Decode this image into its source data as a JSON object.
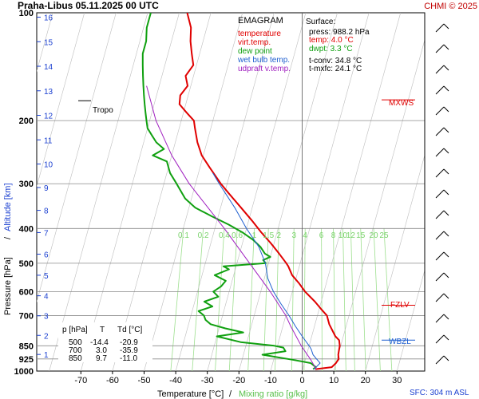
{
  "header": {
    "title": "Praha-Libus   05.11.2025 00 UTC",
    "copyright": "CHMI © 2025"
  },
  "legend": {
    "title": "EMAGRAM",
    "items": [
      {
        "label": "temperature",
        "color": "#e00000"
      },
      {
        "label": "virt.temp.",
        "color": "#e00000"
      },
      {
        "label": "dew point",
        "color": "#10a010"
      },
      {
        "label": "wet bulb temp.",
        "color": "#2060d0"
      },
      {
        "label": "udpraft v.temp.",
        "color": "#a020c0"
      }
    ]
  },
  "surface": {
    "title": "Surface:",
    "press": "press: 988.2 hPa",
    "temp": "temp: 4.0 °C",
    "dwpt": "dwpt: 3.3 °C",
    "tconv": "t-conv: 34.8 °C",
    "tmxfc": "t-mxfc: 24.1 °C"
  },
  "table": {
    "headers": [
      "p [hPa]",
      "T",
      "Td [°C]"
    ],
    "rows": [
      [
        "500",
        "-14.4",
        "-20.9"
      ],
      [
        "700",
        "3.0",
        "-35.9"
      ],
      [
        "850",
        "9.7",
        "-11.0"
      ]
    ]
  },
  "levels": {
    "tropo": "Tropo",
    "mxws": "MXWS",
    "fzlv": "FZLV",
    "wbzl": "WBZL",
    "sfc": "SFC: 304 m ASL"
  },
  "chart_data": {
    "type": "line",
    "title": "Praha-Libus   05.11.2025 00 UTC",
    "xlabel": "Temperature [°C]",
    "xlabel_secondary": "Mixing ratio [g/kg]",
    "ylabel": "Pressure [hPa]",
    "ylabel_secondary": "Altitude [km]",
    "y_scale": "log",
    "xlim": [
      -80,
      30
    ],
    "ylim": [
      1000,
      100
    ],
    "x_ticks": [
      -70,
      -60,
      -50,
      -40,
      -30,
      -20,
      -10,
      0,
      10,
      20,
      30
    ],
    "y_ticks": [
      100,
      200,
      300,
      400,
      500,
      600,
      700,
      850,
      925,
      1000
    ],
    "altitude_ticks": [
      1,
      2,
      3,
      4,
      5,
      6,
      7,
      8,
      9,
      10,
      11,
      12,
      13,
      14,
      15,
      16
    ],
    "mixing_ratio_ticks": [
      "0.1",
      "0.2",
      "0.4",
      "0.6",
      "1",
      "1.5",
      "2",
      "3",
      "4",
      "6",
      "8",
      "10",
      "12",
      "15",
      "20",
      "25"
    ],
    "series": [
      {
        "name": "temperature",
        "color": "#e00000",
        "p": [
          988,
          975,
          950,
          925,
          900,
          870,
          850,
          820,
          800,
          770,
          740,
          700,
          670,
          640,
          600,
          570,
          540,
          510,
          500,
          470,
          440,
          410,
          380,
          350,
          320,
          300,
          270,
          250,
          230,
          210,
          200,
          190,
          180,
          170,
          160,
          150,
          140,
          130,
          120,
          110,
          100
        ],
        "t": [
          4.0,
          9.0,
          10.0,
          10.5,
          10.0,
          9.8,
          9.7,
          9.0,
          7.5,
          6.0,
          4.5,
          3.0,
          0.5,
          -2.0,
          -6.0,
          -8.5,
          -11.5,
          -13.5,
          -14.4,
          -17.5,
          -21.0,
          -25.0,
          -29.0,
          -33.5,
          -38.5,
          -42.0,
          -47.0,
          -50.5,
          -53.0,
          -55.0,
          -56.0,
          -59.0,
          -62.0,
          -62.5,
          -61.0,
          -62.5,
          -61.0,
          -62.5,
          -64.0,
          -65.0,
          -67.5
        ]
      },
      {
        "name": "dew point",
        "color": "#10a010",
        "p": [
          988,
          975,
          950,
          930,
          900,
          880,
          860,
          850,
          830,
          800,
          780,
          760,
          740,
          720,
          700,
          680,
          660,
          640,
          620,
          600,
          580,
          560,
          540,
          520,
          510,
          500,
          490,
          480,
          470,
          450,
          430,
          410,
          390,
          370,
          350,
          330,
          300,
          280,
          260,
          250,
          240,
          230,
          220,
          210,
          200,
          190,
          180,
          170,
          160,
          150,
          140,
          130,
          120,
          110,
          100
        ],
        "t": [
          3.3,
          4.0,
          2.0,
          -4.0,
          -14.0,
          -7.0,
          -8.0,
          -11.0,
          -22.0,
          -30.0,
          -22.0,
          -28.0,
          -33.0,
          -35.0,
          -35.9,
          -38.0,
          -34.0,
          -37.0,
          -33.0,
          -35.0,
          -33.0,
          -32.0,
          -36.0,
          -32.0,
          -34.0,
          -20.9,
          -22.0,
          -20.0,
          -22.0,
          -24.0,
          -27.0,
          -31.0,
          -36.0,
          -42.0,
          -48.0,
          -52.0,
          -56.0,
          -59.0,
          -61.0,
          -66.0,
          -63.0,
          -66.0,
          -68.0,
          -70.0,
          -71.0,
          -72.0,
          -73.0,
          -74.0,
          -75.0,
          -76.0,
          -77.0,
          -78.0,
          -78.0,
          -79.0,
          -79.0
        ]
      },
      {
        "name": "wet bulb temp.",
        "color": "#2060d0",
        "p": [
          988,
          950,
          925,
          900,
          870,
          850,
          800,
          750,
          700,
          650,
          600,
          550,
          500,
          450,
          400,
          350,
          300,
          280
        ],
        "t": [
          3.6,
          5.0,
          3.5,
          2.0,
          1.0,
          0.0,
          -3.0,
          -6.0,
          -9.0,
          -12.5,
          -16.0,
          -19.0,
          -21.0,
          -24.5,
          -30.0,
          -35.5,
          -42.5,
          -45.5
        ]
      },
      {
        "name": "udpraft v.temp.",
        "color": "#a020c0",
        "p": [
          988,
          925,
          850,
          750,
          700,
          600,
          500,
          400,
          300,
          250,
          200,
          160
        ],
        "t": [
          4.3,
          1.5,
          -2.5,
          -7.5,
          -10.0,
          -17.0,
          -26.0,
          -37.0,
          -52.0,
          -60.0,
          -68.0,
          -74.0
        ]
      }
    ],
    "levels": [
      {
        "name": "Tropo",
        "p": 176
      },
      {
        "name": "MXWS",
        "p": 175
      },
      {
        "name": "FZLV",
        "p": 655
      },
      {
        "name": "WBZL",
        "p": 820
      }
    ]
  }
}
